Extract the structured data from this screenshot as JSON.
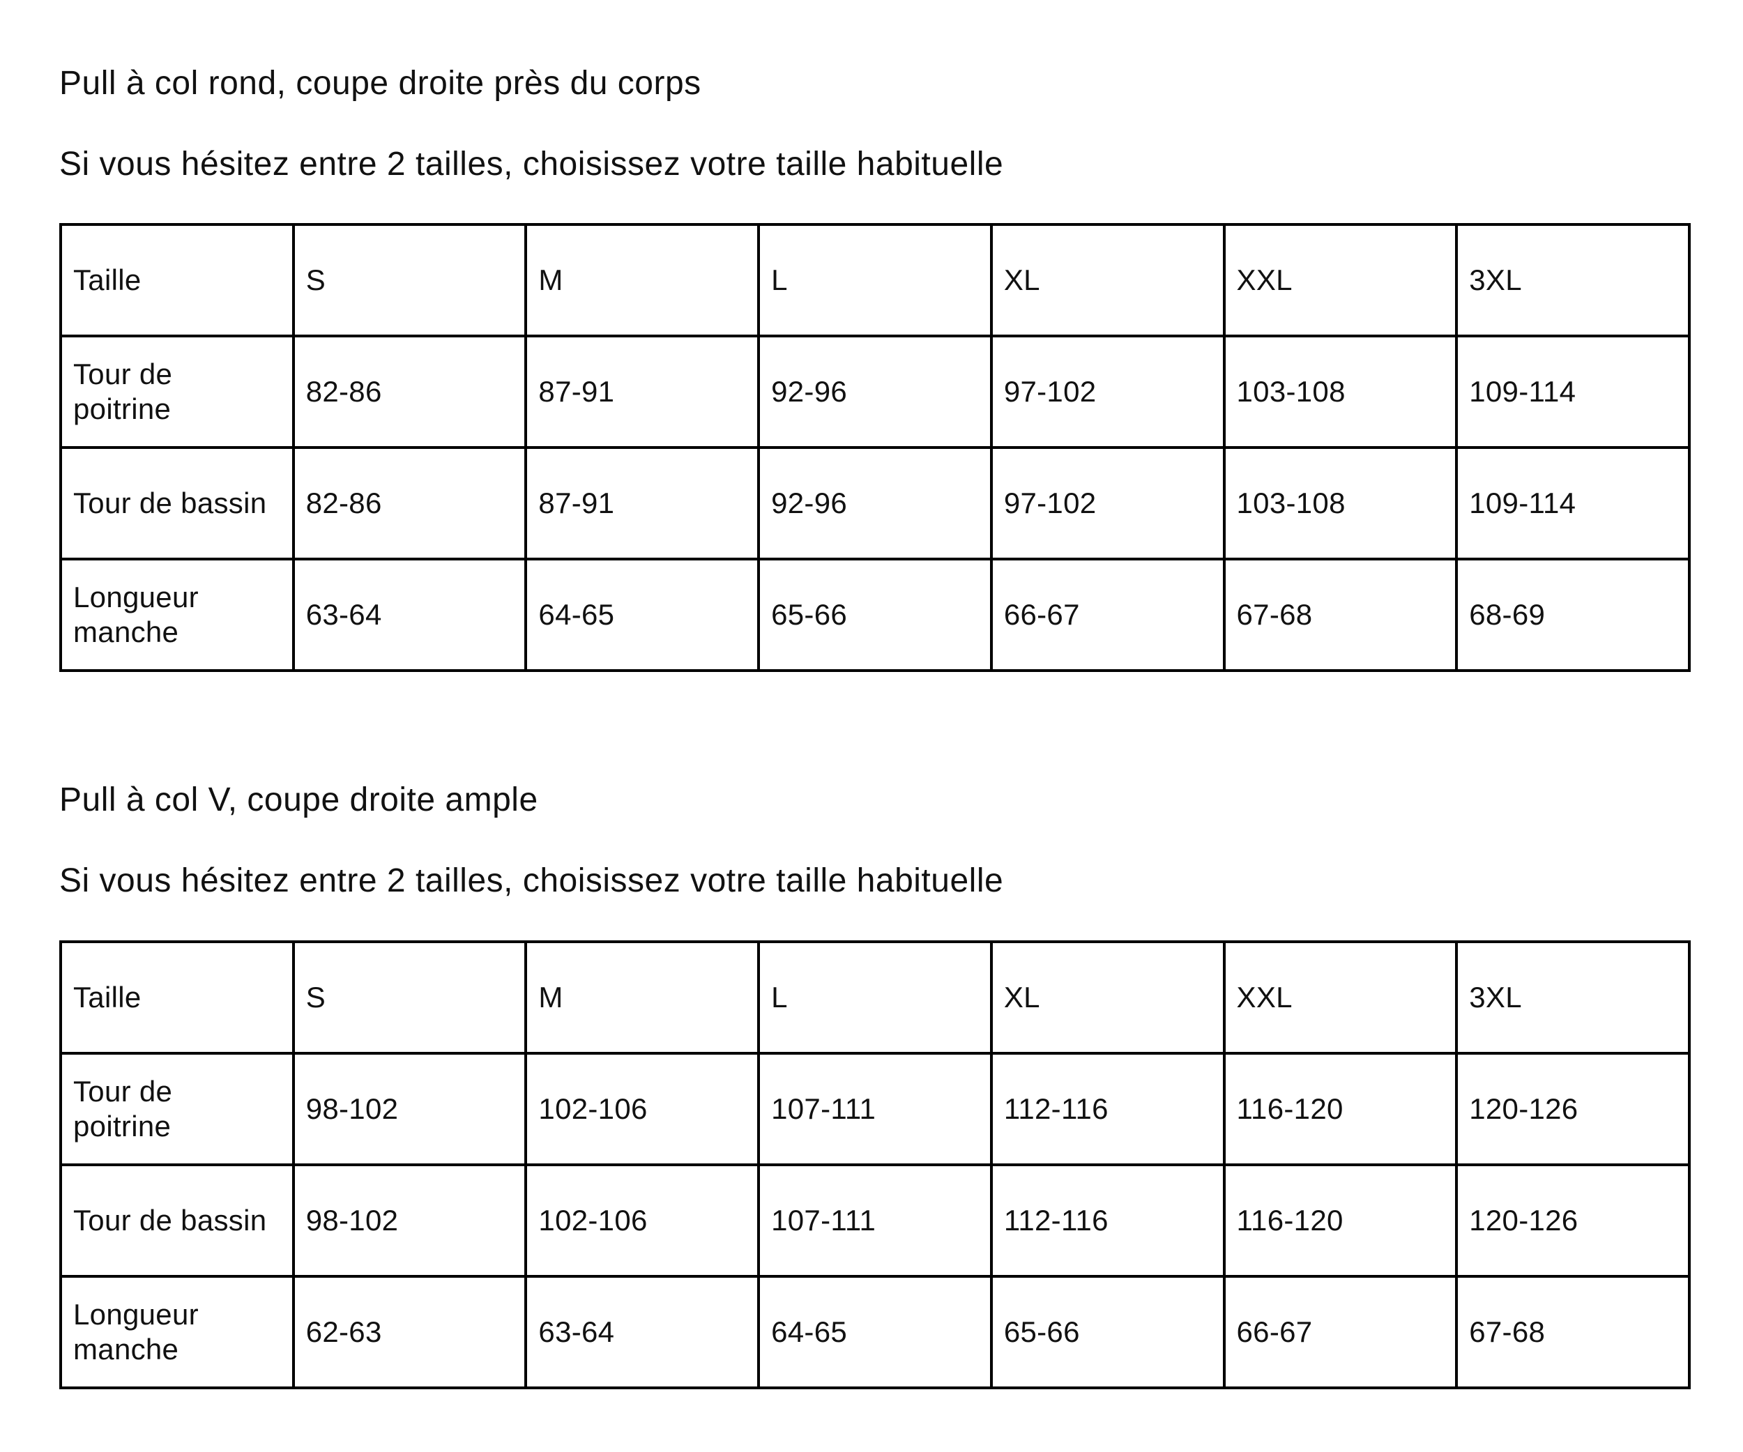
{
  "sections": [
    {
      "title": "Pull à col rond, coupe droite près du corps",
      "note": "Si vous hésitez entre 2 tailles, choisissez votre taille habituelle",
      "rows": [
        [
          "Taille",
          "S",
          "M",
          "L",
          "XL",
          "XXL",
          "3XL"
        ],
        [
          "Tour de poitrine",
          "82-86",
          "87-91",
          "92-96",
          "97-102",
          "103-108",
          "109-114"
        ],
        [
          "Tour de bassin",
          "82-86",
          "87-91",
          "92-96",
          "97-102",
          "103-108",
          "109-114"
        ],
        [
          "Longueur manche",
          "63-64",
          "64-65",
          "65-66",
          "66-67",
          "67-68",
          "68-69"
        ]
      ]
    },
    {
      "title": "Pull à col V, coupe droite ample",
      "note": "Si vous hésitez entre 2 tailles, choisissez votre taille habituelle",
      "rows": [
        [
          "Taille",
          "S",
          "M",
          "L",
          "XL",
          "XXL",
          "3XL"
        ],
        [
          "Tour de poitrine",
          "98-102",
          "102-106",
          "107-111",
          "112-116",
          "116-120",
          "120-126"
        ],
        [
          "Tour de bassin",
          "98-102",
          "102-106",
          "107-111",
          "112-116",
          "116-120",
          "120-126"
        ],
        [
          "Longueur manche",
          "62-63",
          "63-64",
          "64-65",
          "65-66",
          "66-67",
          "67-68"
        ]
      ]
    }
  ]
}
